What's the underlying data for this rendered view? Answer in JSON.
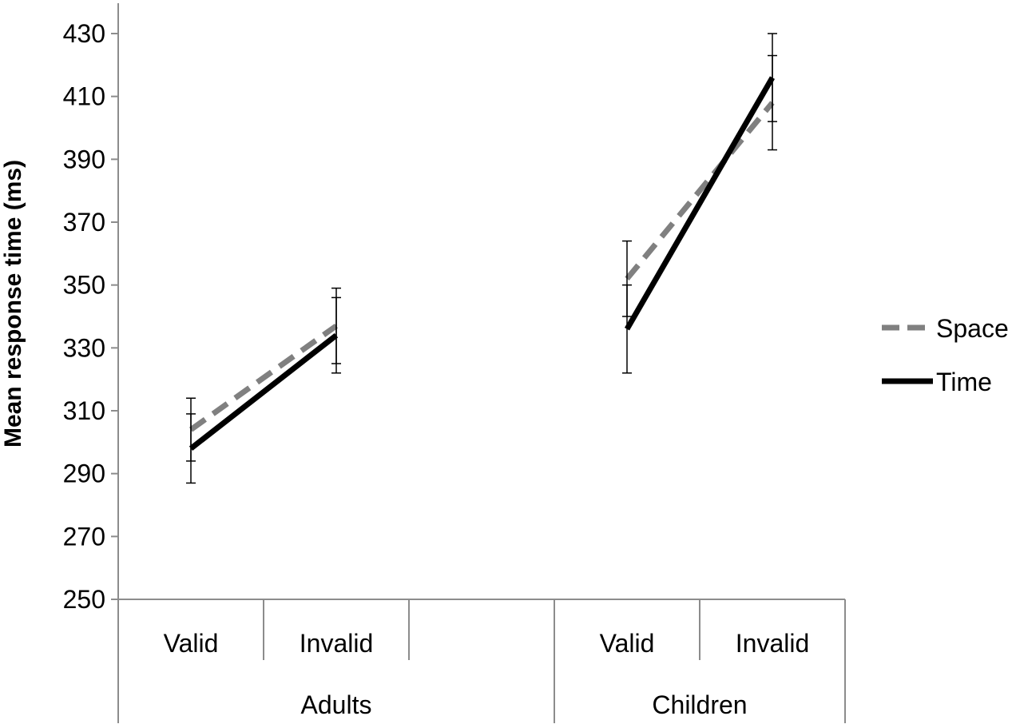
{
  "chart_data": {
    "type": "line",
    "ylabel": "Mean response time (ms)",
    "ylim": [
      250,
      430
    ],
    "yticks": [
      "250",
      "270",
      "290",
      "310",
      "330",
      "350",
      "370",
      "390",
      "410",
      "430"
    ],
    "groups": [
      {
        "label": "Adults",
        "categories": [
          "Valid",
          "Invalid"
        ]
      },
      {
        "label": "Children",
        "categories": [
          "Valid",
          "Invalid"
        ]
      }
    ],
    "legend": {
      "position": "right",
      "entries": [
        "Space",
        "Time"
      ]
    },
    "grid": false,
    "series": [
      {
        "name": "Space",
        "style": "dashed",
        "color": "#808080",
        "segments": [
          {
            "group": 0,
            "values": [
              304,
              337
            ],
            "errors": [
              10,
              12
            ]
          },
          {
            "group": 1,
            "values": [
              352,
              408
            ],
            "errors": [
              12,
              15
            ]
          }
        ]
      },
      {
        "name": "Time",
        "style": "solid",
        "color": "#000000",
        "segments": [
          {
            "group": 0,
            "values": [
              298,
              334
            ],
            "errors": [
              11,
              12
            ]
          },
          {
            "group": 1,
            "values": [
              336,
              416
            ],
            "errors": [
              14,
              14
            ]
          }
        ]
      }
    ]
  }
}
